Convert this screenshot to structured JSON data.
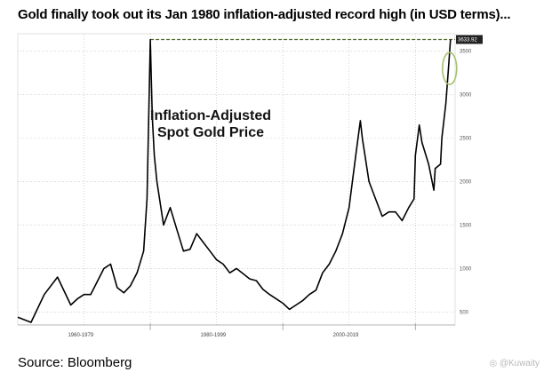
{
  "page": {
    "headline": "Gold finally took out its Jan 1980 inflation-adjusted record high (in USD terms)...",
    "source": "Source: Bloomberg",
    "watermark": "◎ @Kuwaity"
  },
  "chart_data": {
    "type": "line",
    "title": "",
    "annotation_lines": [
      "Inflation-Adjusted",
      "Spot Gold Price"
    ],
    "xlabel": "",
    "ylabel": "",
    "ylim": [
      350,
      3700
    ],
    "xlim": [
      1960,
      2026
    ],
    "y_ticks": [
      500,
      1000,
      1500,
      2000,
      2500,
      3000,
      3500
    ],
    "x_era_labels": [
      "1960-1979",
      "1980-1999",
      "2000-2019"
    ],
    "last_value_label": "3633.92",
    "record_line_value": 3633.92,
    "grid": true,
    "line_color": "#000000",
    "record_line_color": "#556b2f",
    "highlight_circle_color": "#a8c070",
    "series": [
      {
        "x": [
          1960,
          1962,
          1964,
          1966,
          1968,
          1969,
          1970,
          1971,
          1972,
          1973,
          1974,
          1975,
          1976,
          1977,
          1978,
          1979,
          1979.5,
          1980,
          1980.3,
          1980.6,
          1981,
          1982,
          1983,
          1984,
          1985,
          1986,
          1987,
          1988,
          1989,
          1990,
          1991,
          1992,
          1993,
          1994,
          1995,
          1996,
          1997,
          1998,
          1999,
          2000,
          2001,
          2002,
          2003,
          2004,
          2005,
          2006,
          2007,
          2008,
          2009,
          2010,
          2011,
          2011.7,
          2012,
          2013,
          2014,
          2015,
          2016,
          2017,
          2018,
          2019,
          2019.8,
          2020,
          2020.6,
          2021,
          2022,
          2022.8,
          2023,
          2023.8,
          2024,
          2024.6,
          2025,
          2025.3
        ],
        "values": [
          440,
          380,
          700,
          900,
          580,
          650,
          700,
          700,
          850,
          1000,
          1050,
          780,
          720,
          800,
          950,
          1200,
          1800,
          3633,
          2750,
          2300,
          2000,
          1500,
          1700,
          1450,
          1200,
          1220,
          1400,
          1300,
          1200,
          1100,
          1050,
          950,
          1000,
          940,
          880,
          860,
          760,
          700,
          650,
          600,
          530,
          580,
          630,
          700,
          750,
          950,
          1050,
          1200,
          1400,
          1700,
          2300,
          2700,
          2500,
          2000,
          1800,
          1600,
          1650,
          1650,
          1550,
          1700,
          1800,
          2300,
          2650,
          2450,
          2200,
          1900,
          2150,
          2200,
          2500,
          2900,
          3300,
          3633
        ]
      }
    ]
  }
}
